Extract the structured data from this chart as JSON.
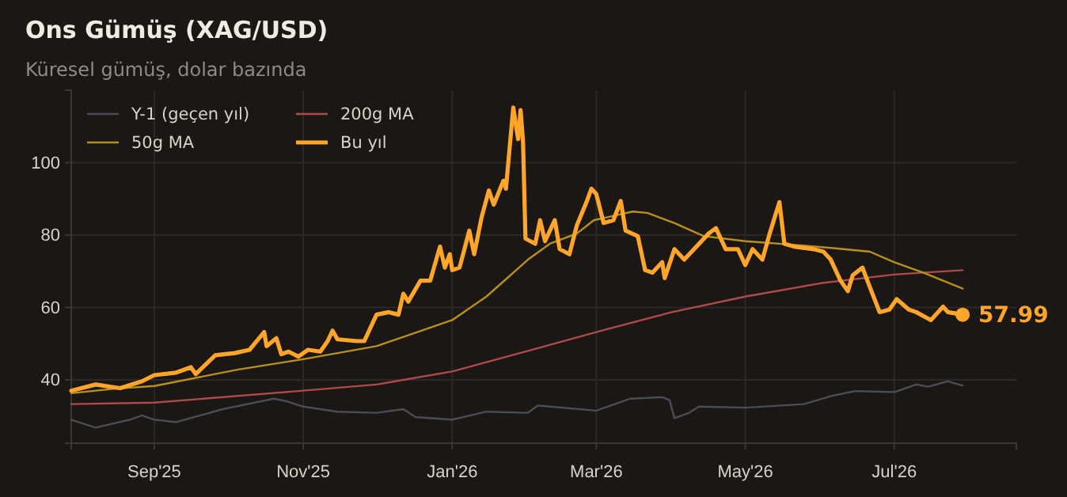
{
  "chart_data": {
    "type": "line",
    "title": "Ons Gümüş (XAG/USD)",
    "subtitle": "Küresel gümüş, dolar bazında",
    "xlim": [
      "2025-07-29",
      "2026-08-20"
    ],
    "ylim": [
      22.5,
      120
    ],
    "yticks": [
      40,
      60,
      80,
      100
    ],
    "xticks": [
      {
        "value": "2025-09-01",
        "label": "Sep'25"
      },
      {
        "value": "2025-11-01",
        "label": "Nov'25"
      },
      {
        "value": "2026-01-01",
        "label": "Jan'26"
      },
      {
        "value": "2026-03-01",
        "label": "Mar'26"
      },
      {
        "value": "2026-05-01",
        "label": "May'26"
      },
      {
        "value": "2026-07-01",
        "label": "Jul'26"
      }
    ],
    "grid": true,
    "legend": "top left",
    "line_style": "solid",
    "marker": "none",
    "annotations": [
      {
        "text": "57.99",
        "x": "2026-07-29",
        "y": 57.99
      }
    ],
    "series": [
      {
        "name": "Y-1 (geçen yıl)",
        "color": "#4a4d55",
        "x": [
          "2025-07-29",
          "2025-08-08",
          "2025-08-22",
          "2025-08-27",
          "2025-09-01",
          "2025-09-10",
          "2025-09-29",
          "2025-10-20",
          "2025-10-25",
          "2025-11-01",
          "2025-11-15",
          "2025-12-01",
          "2025-12-12",
          "2025-12-17",
          "2026-01-01",
          "2026-01-15",
          "2026-02-01",
          "2026-02-05",
          "2026-02-10",
          "2026-03-01",
          "2026-03-15",
          "2026-03-28",
          "2026-03-31",
          "2026-04-02",
          "2026-04-08",
          "2026-04-12",
          "2026-05-01",
          "2026-05-25",
          "2026-06-05",
          "2026-06-15",
          "2026-07-01",
          "2026-07-10",
          "2026-07-15",
          "2026-07-23",
          "2026-07-29"
        ],
        "values": [
          29,
          26.8,
          29,
          30.2,
          29,
          28.3,
          31.9,
          34.8,
          34.1,
          32.6,
          31.2,
          30.9,
          31.9,
          29.7,
          29,
          31.2,
          30.9,
          32.9,
          32.6,
          31.5,
          34.8,
          35.2,
          34.4,
          29.4,
          30.9,
          32.6,
          32.3,
          33.3,
          35.5,
          36.9,
          36.6,
          38.7,
          38.1,
          39.6,
          38.4
        ]
      },
      {
        "name": "200g MA",
        "color": "#b04a4a",
        "x": [
          "2025-07-29",
          "2025-09-01",
          "2025-11-01",
          "2025-12-01",
          "2026-01-01",
          "2026-02-01",
          "2026-03-01",
          "2026-04-01",
          "2026-05-01",
          "2026-06-01",
          "2026-07-01",
          "2026-07-29"
        ],
        "values": [
          33.3,
          33.7,
          37,
          38.7,
          42.3,
          48,
          53.2,
          58.7,
          63,
          66.7,
          69.1,
          70.3
        ]
      },
      {
        "name": "50g MA",
        "color": "#b8901e",
        "x": [
          "2025-07-29",
          "2025-08-15",
          "2025-09-01",
          "2025-10-05",
          "2025-11-01",
          "2025-12-01",
          "2026-01-01",
          "2026-01-15",
          "2026-02-01",
          "2026-02-10",
          "2026-02-21",
          "2026-02-28",
          "2026-03-16",
          "2026-03-22",
          "2026-04-02",
          "2026-04-14",
          "2026-05-01",
          "2026-05-21",
          "2026-06-06",
          "2026-06-21",
          "2026-07-01",
          "2026-07-13",
          "2026-07-21",
          "2026-07-29"
        ],
        "values": [
          36.3,
          37.5,
          38.3,
          42.8,
          45.7,
          49.3,
          56.5,
          63,
          73.2,
          77.6,
          80.4,
          84.1,
          86.5,
          86.1,
          83.3,
          79.7,
          78.3,
          77.3,
          76.4,
          75.4,
          72.5,
          69.6,
          67.4,
          65.2
        ]
      },
      {
        "name": "Bu yıl",
        "color": "#ffa52a",
        "x": [
          "2025-07-29",
          "2025-08-08",
          "2025-08-18",
          "2025-08-27",
          "2025-09-01",
          "2025-09-10",
          "2025-09-16",
          "2025-09-18",
          "2025-09-26",
          "2025-10-04",
          "2025-10-10",
          "2025-10-16",
          "2025-10-17",
          "2025-10-21",
          "2025-10-23",
          "2025-10-26",
          "2025-10-30",
          "2025-11-03",
          "2025-11-08",
          "2025-11-11",
          "2025-11-13",
          "2025-11-15",
          "2025-11-23",
          "2025-11-26",
          "2025-12-01",
          "2025-12-06",
          "2025-12-10",
          "2025-12-12",
          "2025-12-14",
          "2025-12-19",
          "2025-12-23",
          "2025-12-27",
          "2025-12-29",
          "2025-12-31",
          "2026-01-01",
          "2026-01-04",
          "2026-01-08",
          "2026-01-10",
          "2026-01-13",
          "2026-01-16",
          "2026-01-18",
          "2026-01-22",
          "2026-01-23",
          "2026-01-26",
          "2026-01-28",
          "2026-01-29",
          "2026-01-30",
          "2026-01-31",
          "2026-02-04",
          "2026-02-06",
          "2026-02-08",
          "2026-02-12",
          "2026-02-14",
          "2026-02-18",
          "2026-02-21",
          "2026-02-25",
          "2026-02-27",
          "2026-03-01",
          "2026-03-04",
          "2026-03-08",
          "2026-03-11",
          "2026-03-13",
          "2026-03-18",
          "2026-03-21",
          "2026-03-24",
          "2026-03-28",
          "2026-03-29",
          "2026-04-02",
          "2026-04-06",
          "2026-04-11",
          "2026-04-16",
          "2026-04-19",
          "2026-04-23",
          "2026-04-28",
          "2026-05-01",
          "2026-05-04",
          "2026-05-08",
          "2026-05-11",
          "2026-05-15",
          "2026-05-17",
          "2026-05-21",
          "2026-05-29",
          "2026-06-02",
          "2026-06-05",
          "2026-06-09",
          "2026-06-12",
          "2026-06-14",
          "2026-06-18",
          "2026-06-20",
          "2026-06-25",
          "2026-06-29",
          "2026-07-02",
          "2026-07-07",
          "2026-07-10",
          "2026-07-16",
          "2026-07-21",
          "2026-07-23",
          "2026-07-29"
        ],
        "values": [
          37,
          38.7,
          37.7,
          39.6,
          41.3,
          42,
          43.5,
          41.6,
          46.8,
          47.4,
          48.3,
          53.2,
          49.3,
          51.5,
          47.1,
          47.8,
          46.4,
          48.3,
          47.8,
          50.7,
          53.6,
          51.2,
          50.7,
          50.7,
          58,
          58.7,
          58,
          63.8,
          61.6,
          67.4,
          67.4,
          76.8,
          71,
          74.7,
          70.3,
          71,
          81.2,
          74.7,
          84.8,
          92.3,
          88.4,
          95,
          92.8,
          115.2,
          106.5,
          114.5,
          105.8,
          79,
          77.6,
          84.1,
          78.3,
          84.1,
          76.1,
          74.7,
          82.6,
          89.1,
          92.8,
          91.3,
          83.3,
          84.1,
          89.4,
          81.2,
          79.7,
          70.3,
          69.6,
          72.5,
          68.1,
          76.1,
          73.2,
          76.8,
          80.4,
          81.9,
          76.1,
          76.1,
          71.7,
          76.1,
          73.2,
          80.4,
          89.1,
          77.6,
          76.8,
          76.1,
          75.4,
          73.2,
          67.4,
          64.5,
          68.9,
          71,
          67.4,
          58.7,
          59.4,
          62.3,
          59.4,
          58.7,
          56.5,
          60.2,
          58.7,
          57.99
        ]
      }
    ]
  }
}
